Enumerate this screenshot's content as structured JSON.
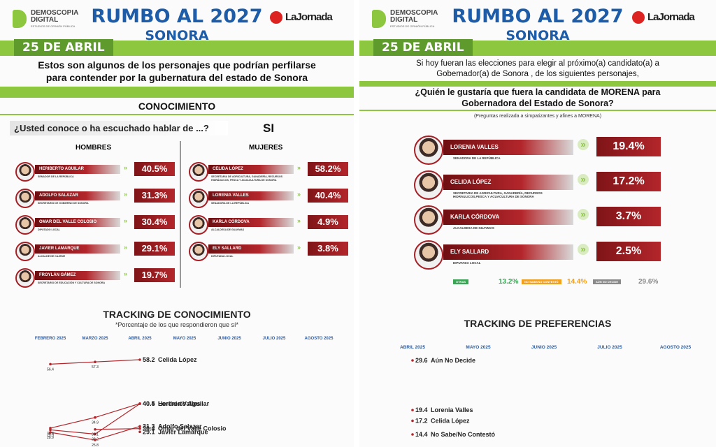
{
  "left_panel": {
    "header": {
      "logo": "DEMOSCOPIA DIGITAL",
      "logo_sub": "ESTUDIOS DE OPINIÓN PÚBLICA",
      "title": "RUMBO AL 2027",
      "subtitle": "SONORA",
      "partner": "LaJornada"
    },
    "date": "25 DE ABRIL",
    "intro": "Estos son algunos de los personajes que podrían perfilarse para contender por la gubernatura del estado de Sonora",
    "section": "CONOCIMIENTO",
    "question": "¿Usted conoce o ha escuchado hablar de ...?",
    "answer": "SI",
    "men_heading": "HOMBRES",
    "women_heading": "MUJERES",
    "men": [
      {
        "name": "HERIBERTO AGUILAR",
        "role": "SENADOR DE LA REPÚBLICA",
        "value": "40.5%"
      },
      {
        "name": "ADOLFO SALAZAR",
        "role": "SECRETARIO DE GOBIERNO DE SONORA",
        "value": "31.3%"
      },
      {
        "name": "OMAR DEL VALLE COLOSIO",
        "role": "DIPUTADO LOCAL",
        "value": "30.4%"
      },
      {
        "name": "JAVIER LAMARQUE",
        "role": "ALCALDE DE CAJEME",
        "value": "29.1%"
      },
      {
        "name": "FROYLÁN GÁMEZ",
        "role": "SECRETARIO DE EDUCACIÓN Y CULTURA DE SONORA",
        "value": "19.7%"
      }
    ],
    "women": [
      {
        "name": "CELIDA LÓPEZ",
        "role": "SECRETARIA DE AGRICULTURA, GANADERÍA, RECURSOS HIDRÁULICOS, PESCA Y ACUACULTURA DE SONORA",
        "value": "58.2%"
      },
      {
        "name": "LORENIA VALLES",
        "role": "SENADORA DE LA REPÚBLICA",
        "value": "40.4%"
      },
      {
        "name": "KARLA CÓRDOVA",
        "role": "ALCALDESA DE GUAYMAS",
        "value": "4.9%"
      },
      {
        "name": "ELY SALLARD",
        "role": "DIPUTADA LOCAL",
        "value": "3.8%"
      }
    ],
    "tracking": {
      "title": "TRACKING DE CONOCIMIENTO",
      "subtitle": "*Porcentaje de los que respondieron que sí*",
      "months": [
        "FEBRERO 2025",
        "MARZO 2025",
        "ABRIL 2025",
        "MAYO 2025",
        "JUNIO 2025",
        "JULIO 2025",
        "AGOSTO 2025"
      ],
      "series": [
        {
          "name": "Celida López",
          "values": [
            56.4,
            57.3,
            58.2
          ]
        },
        {
          "name": "Heriberto Aguilar",
          "values": [
            30.6,
            34.9,
            40.5
          ]
        },
        {
          "name": "Lorenia Valles",
          "values": [
            29.9,
            28.2,
            40.4
          ]
        },
        {
          "name": "Adolfo Salazar",
          "values": [
            28.9,
            25.8,
            31.3
          ]
        },
        {
          "name": "Omar del Valle Colosio",
          "values": [
            null,
            30.1,
            30.4
          ]
        },
        {
          "name": "Javier Lamarque",
          "values": [
            null,
            null,
            29.1
          ]
        }
      ]
    }
  },
  "right_panel": {
    "header": {
      "logo": "DEMOSCOPIA DIGITAL",
      "logo_sub": "ESTUDIOS DE OPINIÓN PÚBLICA",
      "title": "RUMBO AL 2027",
      "subtitle": "SONORA",
      "partner": "LaJornada"
    },
    "date": "25 DE ABRIL",
    "intro": "Si hoy fueran las elecciones para elegir al próximo(a) candidato(a) a Gobernador(a) de Sonora , de los siguientes personajes,",
    "question": "¿Quién le gustaría que fuera la candidata de MORENA para Gobernadora del Estado de Sonora?",
    "note": "(Preguntas realizada a simpatizantes y afines a MORENA)",
    "candidates": [
      {
        "name": "LORENIA VALLES",
        "role": "SENADORA DE LA REPÚBLICA",
        "value": "19.4%"
      },
      {
        "name": "CELIDA LÓPEZ",
        "role": "SECRETARIA DE AGRICULTURA, GANADERÍA, RECURSOS HIDRÁULICOS,PESCA Y ACUACULTURA DE SONORA",
        "value": "17.2%"
      },
      {
        "name": "KARLA CÓRDOVA",
        "role": "ALCALDESA DE GUAYMAS",
        "value": "3.7%"
      },
      {
        "name": "ELY SALLARD",
        "role": "DIPUTADA LOCAL",
        "value": "2.5%"
      }
    ],
    "others": [
      {
        "label": "OTRAS",
        "value": "13.2%",
        "color": "#3aa655"
      },
      {
        "label": "NO SABE/NO CONTESTÓ",
        "value": "14.4%",
        "color": "#f2a01f"
      },
      {
        "label": "AÚN NO DECIDE",
        "value": "29.6%",
        "color": "#8a8a8a"
      }
    ],
    "tracking": {
      "title": "TRACKING DE PREFERENCIAS",
      "months": [
        "ABRIL 2025",
        "MAYO 2025",
        "JUNIO 2025",
        "JULIO 2025",
        "AGOSTO 2025"
      ],
      "series": [
        {
          "name": "Aún No Decide",
          "value": 29.6
        },
        {
          "name": "Lorenia Valles",
          "value": 19.4
        },
        {
          "name": "Celida López",
          "value": 17.2
        },
        {
          "name": "No Sabe/No Contestó",
          "value": 14.4
        }
      ]
    }
  }
}
